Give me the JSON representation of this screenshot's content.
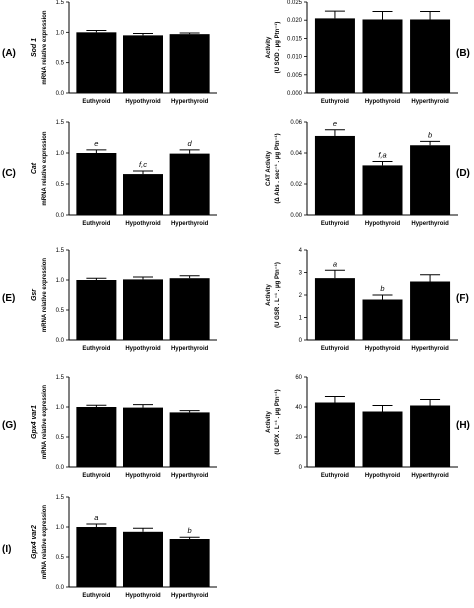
{
  "figure": {
    "chart_data": [
      {
        "type": "bar",
        "panel": "(A)",
        "gene": "Sod 1",
        "ylabel": "mRNA relative expression",
        "categories": [
          "Euthyroid",
          "Hypothyroid",
          "Hyperthyroid"
        ],
        "values": [
          1.0,
          0.95,
          0.97
        ],
        "errors": [
          0.03,
          0.03,
          0.02
        ],
        "significance": [
          "",
          "",
          ""
        ],
        "ylim": [
          0,
          1.5
        ],
        "yticks": [
          "0.0",
          "0.5",
          "1.0",
          "1.5"
        ]
      },
      {
        "type": "bar",
        "panel": "(B)",
        "ylabel_lines": [
          "Activity",
          "(U SOD . μg Ptn⁻¹)"
        ],
        "categories": [
          "Euthyroid",
          "Hypothyroid",
          "Hyperthyroid"
        ],
        "values": [
          0.0205,
          0.0202,
          0.0202
        ],
        "errors": [
          0.002,
          0.0022,
          0.0022
        ],
        "significance": [
          "",
          "",
          ""
        ],
        "ylim": [
          0,
          0.025
        ],
        "yticks": [
          "0.000",
          "0.005",
          "0.010",
          "0.015",
          "0.020",
          "0.025"
        ]
      },
      {
        "type": "bar",
        "panel": "(C)",
        "gene": "Cat",
        "ylabel": "mRNA relative expression",
        "categories": [
          "Euthyroid",
          "Hypothyroid",
          "Hyperthyroid"
        ],
        "values": [
          1.0,
          0.66,
          0.99
        ],
        "errors": [
          0.05,
          0.05,
          0.06
        ],
        "significance": [
          "e",
          "f,c",
          "d"
        ],
        "ylim": [
          0,
          1.5
        ],
        "yticks": [
          "0.0",
          "0.5",
          "1.0",
          "1.5"
        ]
      },
      {
        "type": "bar",
        "panel": "(D)",
        "ylabel_lines": [
          "CAT Activity",
          "(Δ Abs . sec⁻¹ . μg Ptn⁻¹)"
        ],
        "categories": [
          "Euthyroid",
          "Hypothyroid",
          "Hyperthyroid"
        ],
        "values": [
          0.051,
          0.032,
          0.045
        ],
        "errors": [
          0.004,
          0.0025,
          0.0025
        ],
        "significance": [
          "e",
          "f,a",
          "b"
        ],
        "ylim": [
          0,
          0.06
        ],
        "yticks": [
          "0.00",
          "0.02",
          "0.04",
          "0.06"
        ]
      },
      {
        "type": "bar",
        "panel": "(E)",
        "gene": "Gsr",
        "ylabel": "mRNA relative expression",
        "categories": [
          "Euthyroid",
          "Hypothyroid",
          "Hyperthyroid"
        ],
        "values": [
          1.0,
          1.01,
          1.03
        ],
        "errors": [
          0.03,
          0.04,
          0.04
        ],
        "significance": [
          "",
          "",
          ""
        ],
        "ylim": [
          0,
          1.5
        ],
        "yticks": [
          "0.0",
          "0.5",
          "1.0",
          "1.5"
        ]
      },
      {
        "type": "bar",
        "panel": "(F)",
        "ylabel_lines": [
          "Activity",
          "(U GSR . L⁻¹ . μg Ptn⁻¹)"
        ],
        "categories": [
          "Euthyroid",
          "Hypothyroid",
          "Hyperthyroid"
        ],
        "values": [
          2.75,
          1.8,
          2.6
        ],
        "errors": [
          0.35,
          0.2,
          0.3
        ],
        "significance": [
          "a",
          "b",
          ""
        ],
        "ylim": [
          0,
          4
        ],
        "yticks": [
          "0",
          "1",
          "2",
          "3",
          "4"
        ]
      },
      {
        "type": "bar",
        "panel": "(G)",
        "gene": "Gpx4 var1",
        "ylabel": "mRNA relative expression",
        "categories": [
          "Euthyroid",
          "Hypothyroid",
          "Hyperthyroid"
        ],
        "values": [
          1.0,
          0.99,
          0.91
        ],
        "errors": [
          0.03,
          0.05,
          0.03
        ],
        "significance": [
          "",
          "",
          ""
        ],
        "ylim": [
          0,
          1.5
        ],
        "yticks": [
          "0.0",
          "0.5",
          "1.0",
          "1.5"
        ]
      },
      {
        "type": "bar",
        "panel": "(H)",
        "ylabel_lines": [
          "Activity",
          "(U GPX . L⁻¹ . μg Ptn⁻¹)"
        ],
        "categories": [
          "Euthyroid",
          "Hypothyroid",
          "Hyperthyroid"
        ],
        "values": [
          43,
          37,
          41
        ],
        "errors": [
          4,
          4,
          4
        ],
        "significance": [
          "",
          "",
          ""
        ],
        "ylim": [
          0,
          60
        ],
        "yticks": [
          "0",
          "20",
          "40",
          "60"
        ]
      },
      {
        "type": "bar",
        "panel": "(I)",
        "gene": "Gpx4 var2",
        "ylabel": "mRNA relative expression",
        "categories": [
          "Euthyroid",
          "Hypothyroid",
          "Hyperthyroid"
        ],
        "values": [
          1.0,
          0.92,
          0.8
        ],
        "errors": [
          0.05,
          0.06,
          0.03
        ],
        "significance": [
          "a",
          "",
          "b"
        ],
        "ylim": [
          0,
          1.5
        ],
        "yticks": [
          "0.0",
          "0.5",
          "1.0",
          "1.5"
        ]
      }
    ]
  }
}
